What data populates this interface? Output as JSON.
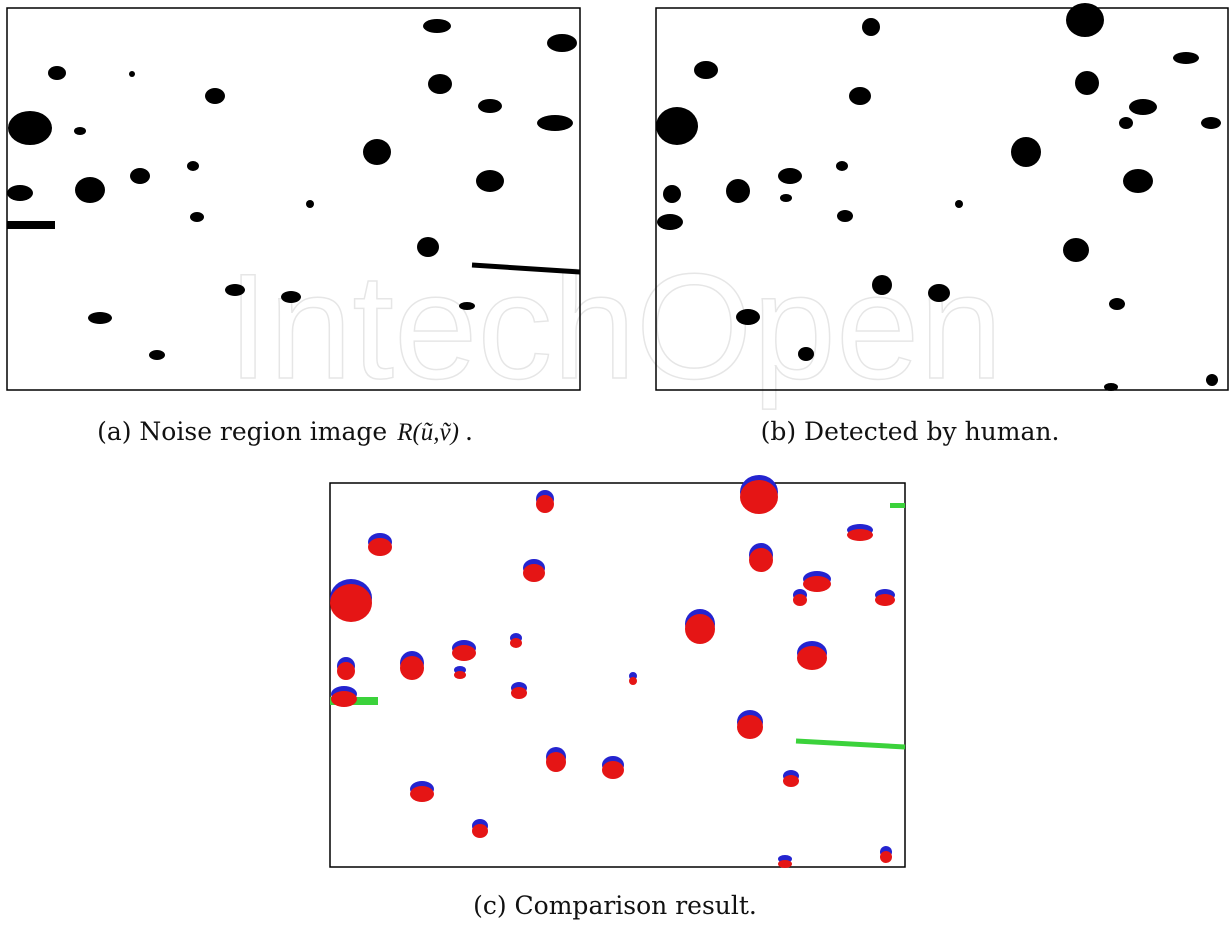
{
  "watermark": "IntechOpen",
  "figures": [
    {
      "caption": "(a) Noise region image",
      "math": "R(ũ,ṽ)",
      "end": "."
    },
    {
      "caption": "(b) Detected by human."
    },
    {
      "caption": "(c) Comparison result."
    }
  ]
}
